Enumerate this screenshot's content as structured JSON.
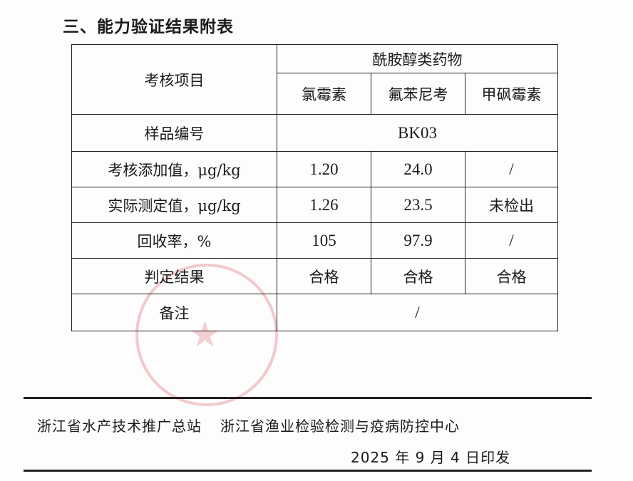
{
  "heading": "三、能力验证结果附表",
  "table": {
    "item_header": "考核项目",
    "group_header": "酰胺醇类药物",
    "drugs": [
      "氯霉素",
      "氟苯尼考",
      "甲砜霉素"
    ],
    "sample_label": "样品编号",
    "sample_id": "BK03",
    "rows": [
      {
        "label": "考核添加值，μg/kg",
        "values": [
          "1.20",
          "24.0",
          "/"
        ]
      },
      {
        "label": "实际测定值，μg/kg",
        "values": [
          "1.26",
          "23.5",
          "未检出"
        ]
      },
      {
        "label": "回收率，%",
        "values": [
          "105",
          "97.9",
          "/"
        ]
      },
      {
        "label": "判定结果",
        "values": [
          "合格",
          "合格",
          "合格"
        ]
      }
    ],
    "remark_label": "备注",
    "remark_value": "/"
  },
  "footer": {
    "org1": "浙江省水产技术推广总站",
    "org2": "浙江省渔业检验检测与疫病防控中心",
    "date": "2025 年 9 月 4 日印发"
  },
  "stamp_color": "#d74650"
}
